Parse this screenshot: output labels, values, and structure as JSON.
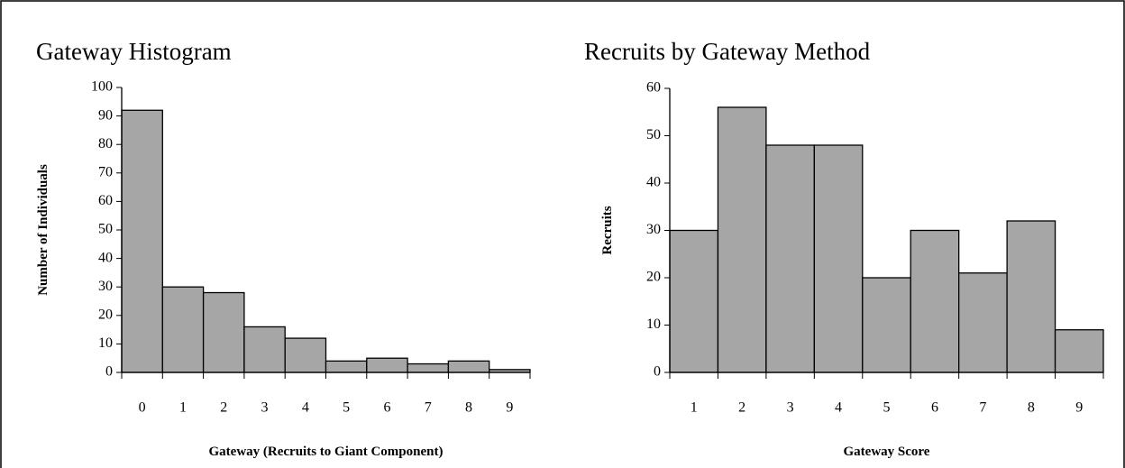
{
  "chart_data": [
    {
      "type": "bar",
      "title": "Gateway Histogram",
      "x_label": "Gateway (Recruits to Giant Component)",
      "y_label": "Number of Individuals",
      "categories": [
        "0",
        "1",
        "2",
        "3",
        "4",
        "5",
        "6",
        "7",
        "8",
        "9"
      ],
      "values": [
        92,
        30,
        28,
        16,
        12,
        4,
        5,
        3,
        4,
        1
      ],
      "color": "#a6a6a6",
      "ylim": [
        0,
        100
      ],
      "yticks": [
        0,
        10,
        20,
        30,
        40,
        50,
        60,
        70,
        80,
        90,
        100
      ]
    },
    {
      "type": "bar",
      "title": "Recruits by Gateway Method",
      "x_label": "Gateway Score",
      "y_label": "Recruits",
      "categories": [
        "1",
        "2",
        "3",
        "4",
        "5",
        "6",
        "7",
        "8",
        "9"
      ],
      "values": [
        30,
        56,
        48,
        48,
        20,
        30,
        21,
        32,
        9
      ],
      "color": "#a6a6a6",
      "ylim": [
        0,
        60
      ],
      "yticks": [
        0,
        10,
        20,
        30,
        40,
        50,
        60
      ]
    }
  ]
}
